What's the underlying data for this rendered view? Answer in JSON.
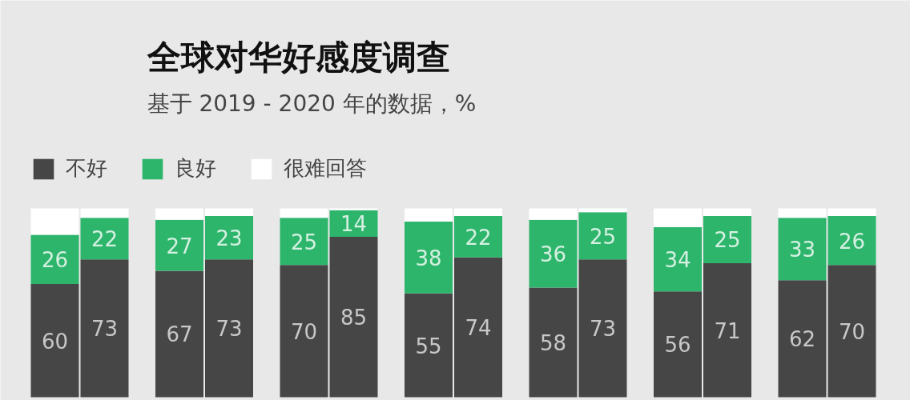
{
  "chart_data": {
    "type": "bar",
    "stacked": true,
    "title": "全球对华好感度调查",
    "subtitle": "基于 2019 - 2020 年的数据，%",
    "legend": "top left",
    "tick_labels": false,
    "categories": [
      null,
      null,
      null,
      null,
      null,
      null,
      null,
      null,
      null,
      null,
      null,
      null,
      null,
      null
    ],
    "series": [
      {
        "name": "不好",
        "color": "#464646",
        "values": [
          60,
          73,
          67,
          73,
          70,
          85,
          55,
          74,
          58,
          73,
          56,
          71,
          62,
          70
        ],
        "value_labels": [
          "60",
          "73",
          "67",
          "73",
          "70",
          "85",
          "55",
          "74",
          "58",
          "73",
          "56",
          "71",
          "62",
          "70"
        ]
      },
      {
        "name": "良好",
        "color": "#2db56c",
        "values": [
          26,
          22,
          27,
          23,
          25,
          14,
          38,
          22,
          36,
          25,
          34,
          25,
          33,
          26
        ],
        "value_labels": [
          "26",
          "22",
          "27",
          "23",
          "25",
          "14",
          "38",
          "22",
          "36",
          "25",
          "34",
          "25",
          "33",
          "26"
        ]
      },
      {
        "name": "很难回答",
        "color": "#ffffff",
        "values": [
          14,
          5,
          6,
          4,
          5,
          1,
          7,
          4,
          6,
          2,
          10,
          4,
          5,
          4
        ]
      }
    ]
  }
}
